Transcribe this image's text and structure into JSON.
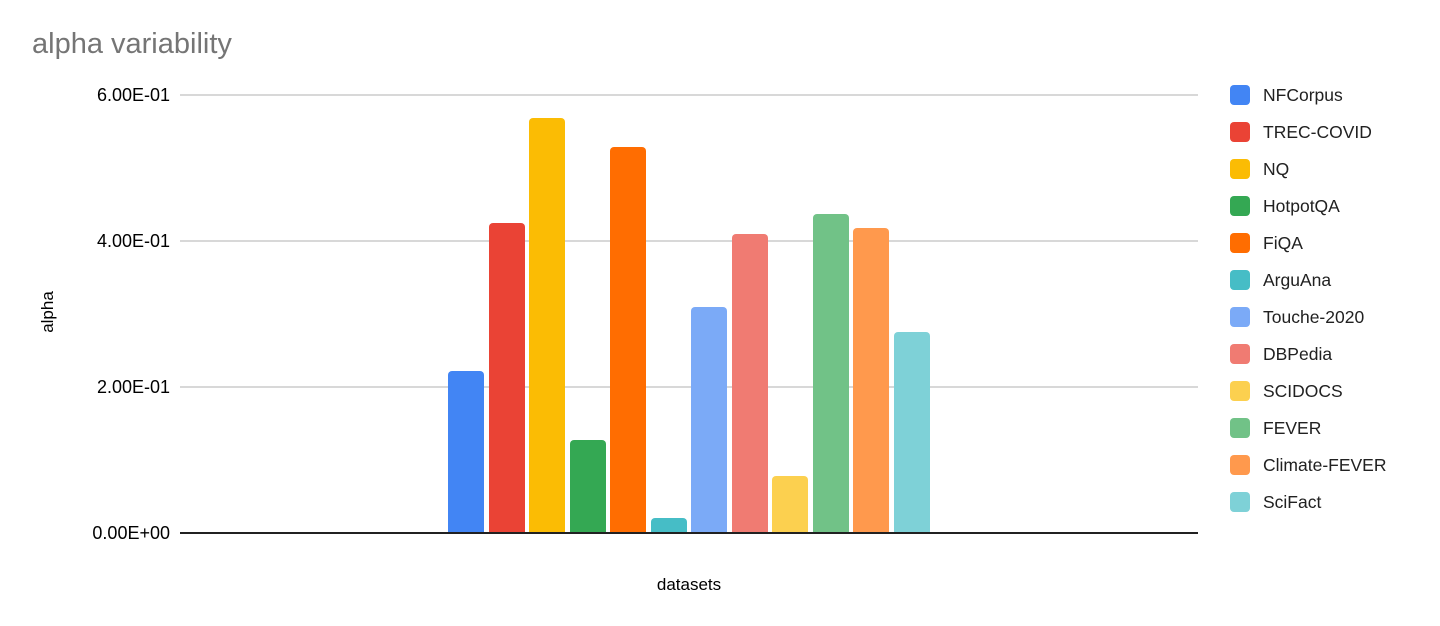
{
  "chart_data": {
    "type": "bar",
    "title": "alpha variability",
    "xlabel": "datasets",
    "ylabel": "alpha",
    "ylim": [
      0,
      0.6
    ],
    "grid": true,
    "legend_position": "right",
    "y_ticks": [
      {
        "value": 0.6,
        "label": "6.00E-01"
      },
      {
        "value": 0.4,
        "label": "4.00E-01"
      },
      {
        "value": 0.2,
        "label": "2.00E-01"
      },
      {
        "value": 0.0,
        "label": "0.00E+00"
      }
    ],
    "series": [
      {
        "name": "NFCorpus",
        "value": 0.222,
        "color": "#4285F4"
      },
      {
        "name": "TREC-COVID",
        "value": 0.425,
        "color": "#EA4335"
      },
      {
        "name": "NQ",
        "value": 0.568,
        "color": "#FBBC04"
      },
      {
        "name": "HotpotQA",
        "value": 0.127,
        "color": "#34A853"
      },
      {
        "name": "FiQA",
        "value": 0.529,
        "color": "#FF6D01"
      },
      {
        "name": "ArguAna",
        "value": 0.02,
        "color": "#46BDC6"
      },
      {
        "name": "Touche-2020",
        "value": 0.31,
        "color": "#7BAAF7"
      },
      {
        "name": "DBPedia",
        "value": 0.41,
        "color": "#F07B72"
      },
      {
        "name": "SCIDOCS",
        "value": 0.078,
        "color": "#FCD04F"
      },
      {
        "name": "FEVER",
        "value": 0.437,
        "color": "#71C287"
      },
      {
        "name": "Climate-FEVER",
        "value": 0.418,
        "color": "#FF994D"
      },
      {
        "name": "SciFact",
        "value": 0.275,
        "color": "#7ED1D7"
      }
    ]
  },
  "colors": {
    "background": "#FFFFFF",
    "title_text": "#757575",
    "axis_text": "#000000",
    "legend_text": "#212121",
    "gridline": "#D8D8D8",
    "baseline": "#212121"
  }
}
